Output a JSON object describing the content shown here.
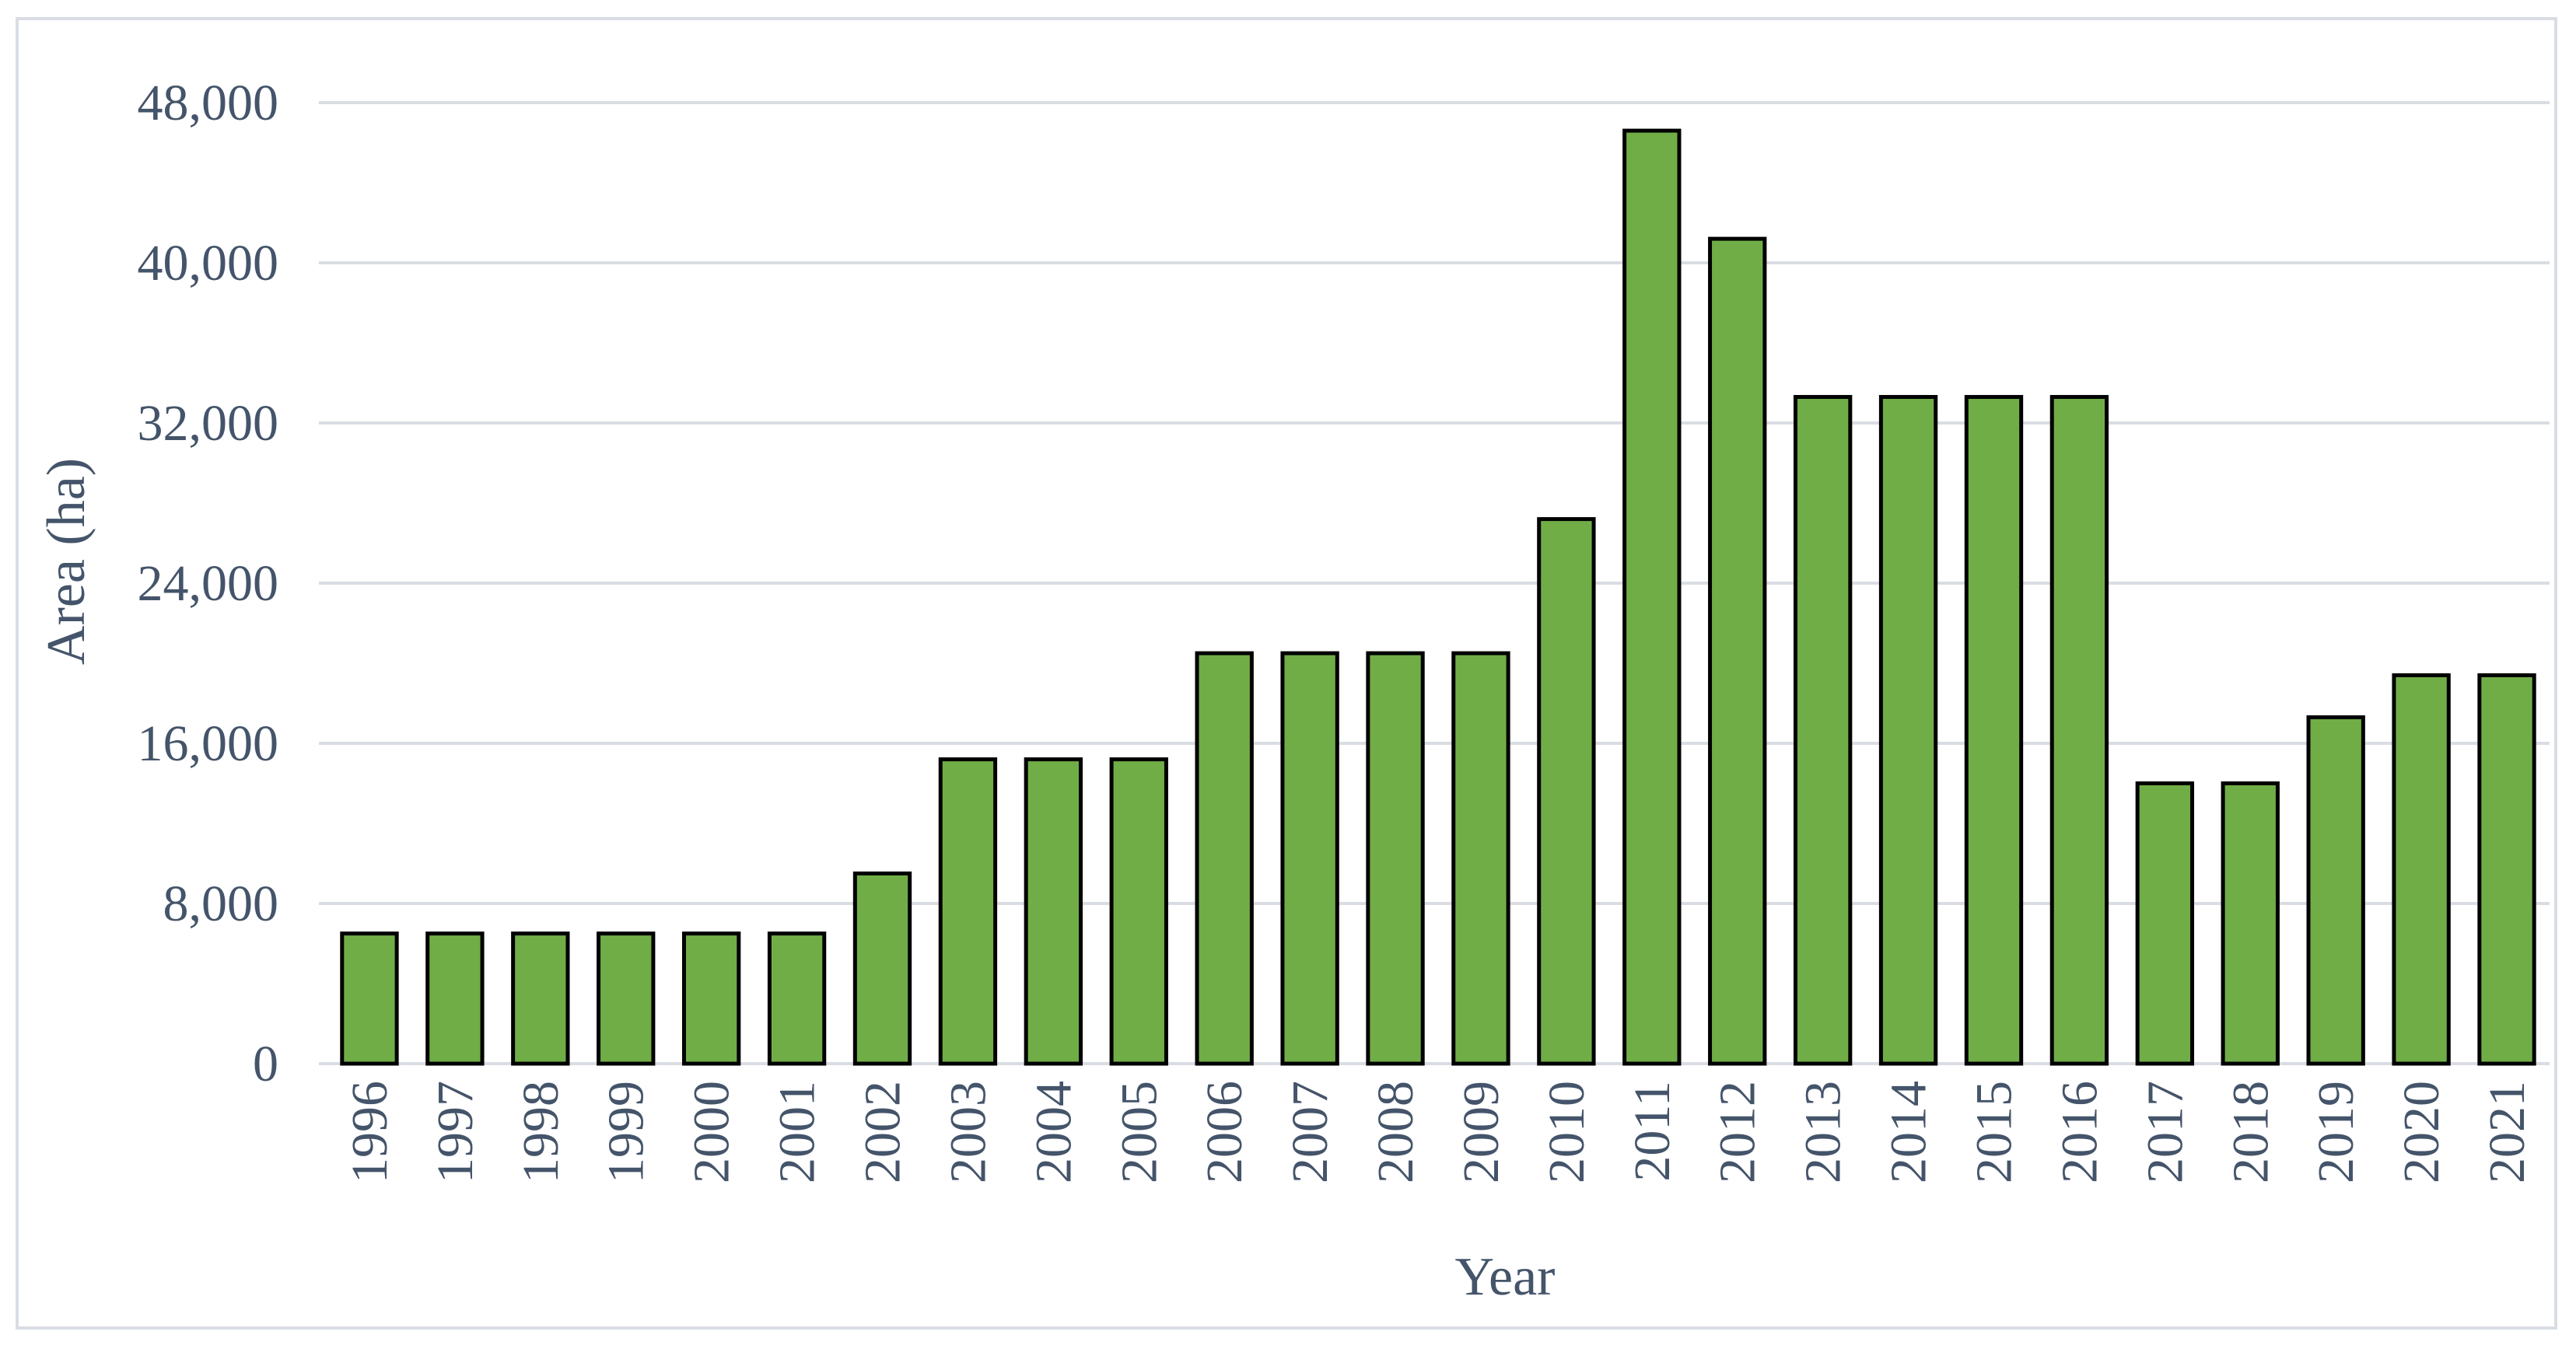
{
  "chart_data": {
    "type": "bar",
    "title": "",
    "xlabel": "Year",
    "ylabel": "Area (ha)",
    "ylim": [
      0,
      48000
    ],
    "yticks": [
      0,
      8000,
      16000,
      24000,
      32000,
      40000,
      48000
    ],
    "ytick_labels": [
      "0",
      "8,000",
      "16,000",
      "24,000",
      "32,000",
      "40,000",
      "48,000"
    ],
    "grid": "horizontal",
    "legend": "none",
    "categories": [
      "1996",
      "1997",
      "1998",
      "1999",
      "2000",
      "2001",
      "2002",
      "2003",
      "2004",
      "2005",
      "2006",
      "2007",
      "2008",
      "2009",
      "2010",
      "2011",
      "2012",
      "2013",
      "2014",
      "2015",
      "2016",
      "2017",
      "2018",
      "2019",
      "2020",
      "2021"
    ],
    "values": [
      6500,
      6500,
      6500,
      6500,
      6500,
      6500,
      9500,
      15200,
      15200,
      15200,
      20500,
      20500,
      20500,
      20500,
      27200,
      46600,
      41200,
      33300,
      33300,
      33300,
      33300,
      14000,
      14000,
      17300,
      19400,
      19400
    ],
    "colors": {
      "bar_fill": "#70ad47",
      "bar_stroke": "#000000",
      "grid": "#d9dde3",
      "text": "#44546a",
      "frame": "#d9dde3"
    }
  }
}
